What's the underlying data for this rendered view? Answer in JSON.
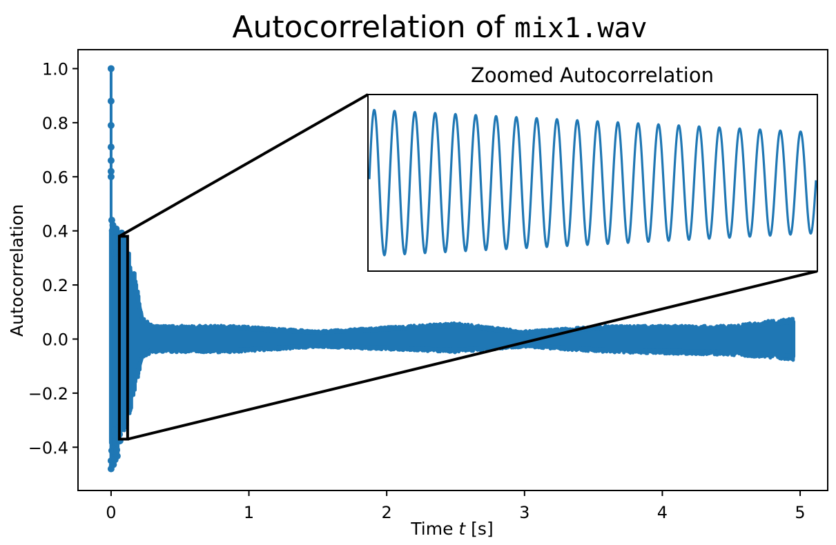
{
  "chart_data": {
    "type": "line",
    "title": {
      "prefix": "Autocorrelation of ",
      "code": "mix1.wav"
    },
    "xlabel": {
      "prefix": "Time ",
      "var": "t",
      "suffix": " [s]"
    },
    "ylabel": "Autocorrelation",
    "xlim": [
      -0.24,
      5.2
    ],
    "ylim": [
      -0.56,
      1.07
    ],
    "xticks": [
      0,
      1,
      2,
      3,
      4,
      5
    ],
    "xtick_labels": [
      "0",
      "1",
      "2",
      "3",
      "4",
      "5"
    ],
    "yticks": [
      -0.4,
      -0.2,
      0.0,
      0.2,
      0.4,
      0.6,
      0.8,
      1.0
    ],
    "ytick_labels": [
      "−0.4",
      "−0.2",
      "0.0",
      "0.2",
      "0.4",
      "0.6",
      "0.8",
      "1.0"
    ],
    "grid": false,
    "series_color": "#1f77b4",
    "main_series": {
      "peak_points": [
        [
          0.0,
          1.0
        ],
        [
          0.0,
          0.88
        ],
        [
          0.0,
          0.79
        ],
        [
          0.0,
          0.71
        ],
        [
          0.0,
          0.66
        ],
        [
          0.0,
          0.62
        ],
        [
          0.0,
          0.6
        ],
        [
          0.0,
          -0.48
        ],
        [
          0.0,
          -0.45
        ]
      ],
      "envelope": [
        [
          0.0,
          0.5,
          -0.48
        ],
        [
          0.03,
          0.42,
          -0.47
        ],
        [
          0.06,
          0.41,
          -0.4
        ],
        [
          0.12,
          0.36,
          -0.33
        ],
        [
          0.17,
          0.25,
          -0.2
        ],
        [
          0.23,
          0.08,
          -0.07
        ],
        [
          0.3,
          0.05,
          -0.05
        ],
        [
          0.9,
          0.05,
          -0.05
        ],
        [
          1.5,
          0.03,
          -0.03
        ],
        [
          2.5,
          0.06,
          -0.05
        ],
        [
          3.0,
          0.03,
          -0.03
        ],
        [
          3.6,
          0.05,
          -0.05
        ],
        [
          4.5,
          0.05,
          -0.06
        ],
        [
          4.8,
          0.07,
          -0.07
        ],
        [
          4.95,
          0.08,
          -0.08
        ]
      ]
    },
    "inset": {
      "title": "Zoomed Autocorrelation",
      "zoom_xrange": [
        0.06,
        0.12
      ],
      "zoom_yrange": [
        -0.37,
        0.38
      ],
      "cycles": 22,
      "amplitude_start": 0.29,
      "amplitude_end": 0.2,
      "center": 0.03
    }
  }
}
